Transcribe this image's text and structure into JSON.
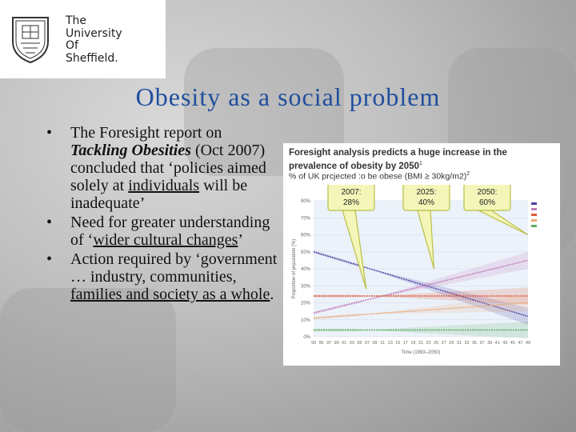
{
  "logo": {
    "lines": [
      "The",
      "University",
      "Of",
      "Sheffield."
    ]
  },
  "slide_title": "Obesity as a social problem",
  "bullets": {
    "b1": {
      "prefix": "The Foresight report on ",
      "italic": "Tackling Obesities",
      "suffix": " (Oct 2007) concluded that ‘policies aimed solely at ",
      "underlined": "individuals",
      "end": " will be inadequate’"
    },
    "b2": {
      "prefix": "Need for greater understanding of ‘",
      "underlined": "wider cultural changes",
      "end": "’"
    },
    "b3": {
      "prefix": "Action required by ‘government … industry, communities, ",
      "underlined": "families and society as a whole",
      "end": "."
    }
  },
  "chart_header": {
    "title": "Foresight analysis predicts a huge increase in the prevalence of obesity by 2050",
    "title_sup": "1",
    "subtitle": "% of UK prcjected :o be obese (BMI ≥ 30kg/m2)",
    "subtitle_sup": "2"
  },
  "chart_data": {
    "type": "line",
    "ylabel": "Proportion of population (%)",
    "xlabel": "Time (1993–2050)",
    "ylim": [
      0,
      80
    ],
    "yticks": [
      "0%",
      "10%",
      "20%",
      "30%",
      "40%",
      "50%",
      "60%",
      "70%",
      "80%"
    ],
    "xticks": [
      "93",
      "95",
      "97",
      "99",
      "01",
      "03",
      "05",
      "07",
      "09",
      "11",
      "13",
      "15",
      "17",
      "19",
      "21",
      "23",
      "25",
      "27",
      "29",
      "31",
      "33",
      "35",
      "37",
      "39",
      "41",
      "43",
      "45",
      "47",
      "49"
    ],
    "x": [
      1993,
      2050
    ],
    "series": [
      {
        "color": "#4b3fa0",
        "start": 50,
        "end": 12
      },
      {
        "color": "#c07ab8",
        "start": 14,
        "end": 45
      },
      {
        "color": "#e05a3a",
        "start": 24,
        "end": 24
      },
      {
        "color": "#e8a878",
        "start": 11,
        "end": 20
      },
      {
        "color": "#5fae5f",
        "start": 4,
        "end": 4
      }
    ],
    "callouts": [
      {
        "year": "2007:",
        "value": "28%",
        "point_x": 2007,
        "point_y": 28
      },
      {
        "year": "2025:",
        "value": "40%",
        "point_x": 2025,
        "point_y": 40
      },
      {
        "year": "2050:",
        "value": "60%",
        "point_x": 2050,
        "point_y": 60
      }
    ],
    "legend_placement": "top-right"
  },
  "colors": {
    "title": "#1f4e9e",
    "callout_fill": "#f3f6b8",
    "callout_stroke": "#b9bf45",
    "plot_bg": "#ecf2fa"
  }
}
